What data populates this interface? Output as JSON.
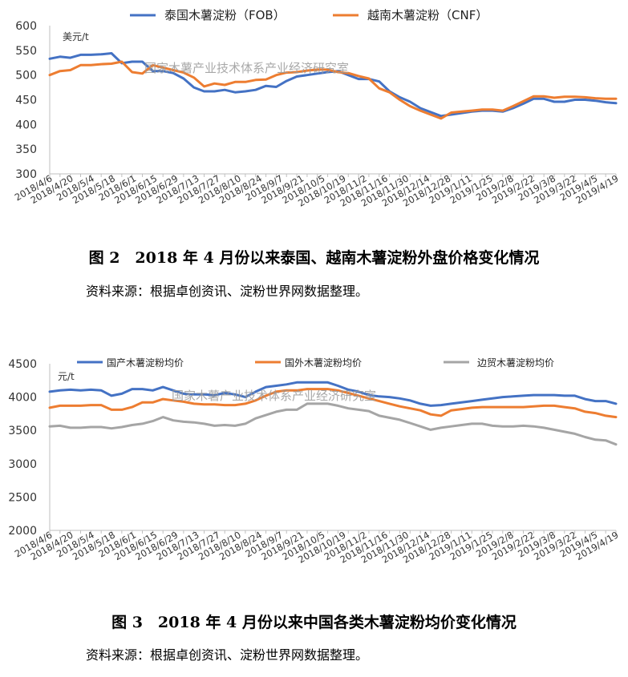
{
  "figures": [
    {
      "caption": "图 2　2018 年 4 月份以来泰国、越南木薯淀粉外盘价格变化情况",
      "source": "资料来源：根据卓创资讯、淀粉世界网数据整理。"
    },
    {
      "caption": "图 3　2018 年 4 月份以来中国各类木薯淀粉均价变化情况",
      "source": "资料来源：根据卓创资讯、淀粉世界网数据整理。"
    }
  ],
  "chart_data": [
    {
      "type": "line",
      "unit_label": "美元/t",
      "watermark": "国家木薯产业技术体系产业经济研究室",
      "ylim": [
        300,
        600
      ],
      "yticks": [
        "300",
        "350",
        "400",
        "450",
        "500",
        "550",
        "600"
      ],
      "xtick_labels": [
        "2018/4/6",
        "2018/4/20",
        "2018/5/4",
        "2018/5/18",
        "2018/6/1",
        "2018/6/15",
        "2018/6/29",
        "2018/7/13",
        "2018/7/27",
        "2018/8/10",
        "2018/8/24",
        "2018/9/7",
        "2018/9/21",
        "2018/10/5",
        "2018/10/19",
        "2018/11/2",
        "2018/11/16",
        "2018/11/30",
        "2018/12/14",
        "2018/12/28",
        "2019/1/11",
        "2019/1/25",
        "2019/2/8",
        "2019/2/22",
        "2019/3/8",
        "2019/3/22",
        "2019/4/5",
        "2019/4/19"
      ],
      "grid": false,
      "legend_position": "top",
      "series": [
        {
          "name": "泰国木薯淀粉（FOB）",
          "color": "#4472C4",
          "values": [
            533,
            537,
            535,
            541,
            541,
            542,
            544,
            524,
            527,
            527,
            508,
            508,
            504,
            493,
            475,
            467,
            467,
            470,
            465,
            467,
            470,
            478,
            476,
            488,
            497,
            500,
            503,
            506,
            508,
            500,
            492,
            492,
            487,
            467,
            455,
            446,
            433,
            425,
            417,
            420,
            423,
            426,
            428,
            428,
            426,
            433,
            442,
            452,
            452,
            446,
            446,
            450,
            450,
            448,
            445,
            443
          ]
        },
        {
          "name": "越南木薯淀粉（CNF）",
          "color": "#ED7D31",
          "values": [
            500,
            508,
            510,
            520,
            520,
            522,
            523,
            527,
            506,
            503,
            520,
            515,
            510,
            505,
            495,
            477,
            483,
            480,
            486,
            486,
            490,
            491,
            500,
            505,
            506,
            509,
            511,
            511,
            506,
            504,
            498,
            493,
            473,
            465,
            450,
            437,
            428,
            420,
            412,
            424,
            426,
            428,
            430,
            430,
            428,
            437,
            447,
            457,
            457,
            454,
            456,
            456,
            455,
            453,
            452,
            452
          ]
        }
      ]
    },
    {
      "type": "line",
      "unit_label": "元/t",
      "watermark": "国家木薯产业技术体系产业经济研究室",
      "ylim": [
        2000,
        4500
      ],
      "yticks": [
        "2000",
        "2500",
        "3000",
        "3500",
        "4000",
        "4500"
      ],
      "xtick_labels": [
        "2018/4/6",
        "2018/4/20",
        "2018/5/4",
        "2018/5/18",
        "2018/6/1",
        "2018/6/15",
        "2018/6/29",
        "2018/7/13",
        "2018/7/27",
        "2018/8/10",
        "2018/8/24",
        "2018/9/7",
        "2018/9/21",
        "2018/10/5",
        "2018/10/19",
        "2018/11/2",
        "2018/11/16",
        "2018/11/30",
        "2018/12/14",
        "2018/12/28",
        "2019/1/11",
        "2019/1/25",
        "2019/2/8",
        "2019/2/22",
        "2019/3/8",
        "2019/3/22",
        "2019/4/5",
        "2019/4/19"
      ],
      "grid": false,
      "legend_position": "top",
      "series": [
        {
          "name": "国产木薯淀粉均价",
          "color": "#4472C4",
          "values": [
            4080,
            4100,
            4110,
            4100,
            4110,
            4100,
            4020,
            4050,
            4120,
            4120,
            4100,
            4150,
            4100,
            4050,
            4040,
            4040,
            4030,
            4060,
            4040,
            4000,
            4080,
            4150,
            4170,
            4190,
            4220,
            4220,
            4220,
            4220,
            4170,
            4110,
            4080,
            4030,
            4010,
            4000,
            3980,
            3950,
            3900,
            3870,
            3880,
            3900,
            3920,
            3940,
            3960,
            3980,
            4000,
            4010,
            4020,
            4030,
            4030,
            4030,
            4020,
            4020,
            3970,
            3940,
            3940,
            3900
          ]
        },
        {
          "name": "国外木薯淀粉均价",
          "color": "#ED7D31",
          "values": [
            3840,
            3870,
            3870,
            3870,
            3880,
            3880,
            3810,
            3810,
            3850,
            3920,
            3920,
            3970,
            3950,
            3930,
            3900,
            3890,
            3890,
            3880,
            3880,
            3900,
            3950,
            4020,
            4080,
            4100,
            4100,
            4120,
            4120,
            4120,
            4100,
            4060,
            4020,
            3980,
            3940,
            3900,
            3860,
            3830,
            3800,
            3740,
            3720,
            3800,
            3820,
            3840,
            3850,
            3850,
            3850,
            3850,
            3850,
            3860,
            3870,
            3870,
            3850,
            3830,
            3780,
            3760,
            3720,
            3700
          ]
        },
        {
          "name": "边贸木薯淀粉均价",
          "color": "#A5A5A5",
          "values": [
            3560,
            3570,
            3540,
            3540,
            3550,
            3550,
            3530,
            3550,
            3580,
            3600,
            3640,
            3700,
            3650,
            3630,
            3620,
            3600,
            3570,
            3580,
            3570,
            3600,
            3680,
            3730,
            3780,
            3810,
            3810,
            3900,
            3900,
            3900,
            3870,
            3830,
            3810,
            3790,
            3720,
            3690,
            3660,
            3610,
            3560,
            3510,
            3540,
            3560,
            3580,
            3600,
            3600,
            3570,
            3560,
            3560,
            3570,
            3560,
            3540,
            3510,
            3480,
            3450,
            3400,
            3360,
            3350,
            3290
          ]
        }
      ]
    }
  ]
}
